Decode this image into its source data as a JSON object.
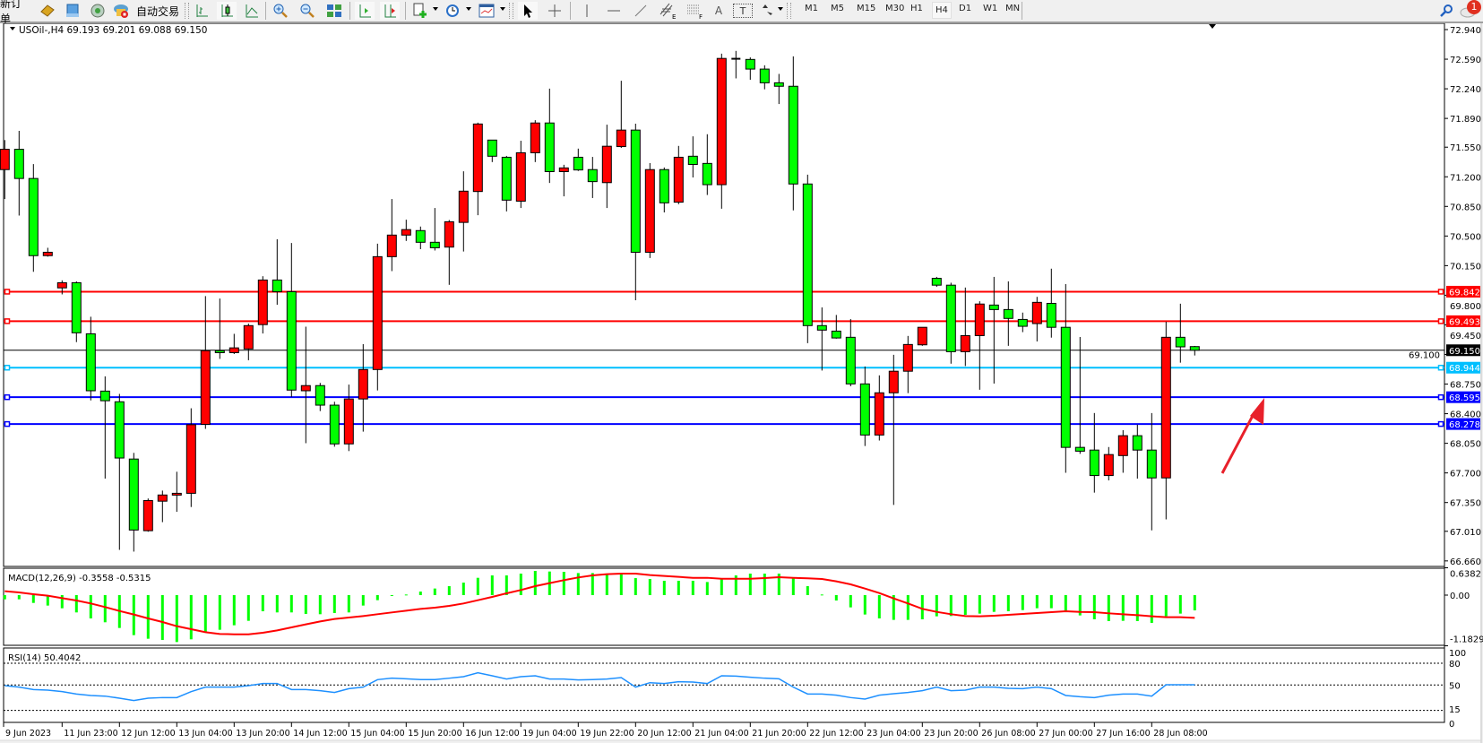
{
  "toolbar": {
    "new_order_label": "新订单",
    "auto_trading_label": "自动交易",
    "timeframes": [
      "M1",
      "M5",
      "M15",
      "M30",
      "H1",
      "H4",
      "D1",
      "W1",
      "MN"
    ],
    "selected_timeframe": "H4",
    "tools": {
      "text_label": "A",
      "text_box_label": "T",
      "equidistant_channel_sub": "E",
      "fibo_sub": "F"
    },
    "notification_count": "1"
  },
  "chart": {
    "header": "USOil-,H4  69.193 69.201 69.088 69.150",
    "colors": {
      "bull": "#ff0000",
      "bear": "#00ff00",
      "wick": "#000000"
    },
    "price_axis": [
      "72.940",
      "72.590",
      "72.240",
      "71.890",
      "71.550",
      "71.200",
      "70.850",
      "70.500",
      "70.150",
      "69.800",
      "69.450",
      "69.100",
      "68.750",
      "68.400",
      "68.050",
      "67.700",
      "67.350",
      "67.010",
      "66.660"
    ],
    "horizontal_lines": [
      {
        "price": 69.842,
        "label": "69.842",
        "color": "#ff0000"
      },
      {
        "price": 69.493,
        "label": "69.493",
        "color": "#ff0000"
      },
      {
        "price": 69.15,
        "label": "69.150",
        "color": "#000000",
        "current": true
      },
      {
        "price": 68.944,
        "label": "68.944",
        "color": "#00bfff"
      },
      {
        "price": 68.595,
        "label": "68.595",
        "color": "#0000ff"
      },
      {
        "price": 68.278,
        "label": "68.278",
        "color": "#0000ff"
      }
    ],
    "time_axis": [
      {
        "index": 0,
        "label": "9 Jun 2023"
      },
      {
        "index": 4,
        "label": "11 Jun 23:00"
      },
      {
        "index": 8,
        "label": "12 Jun 12:00"
      },
      {
        "index": 12,
        "label": "13 Jun 04:00"
      },
      {
        "index": 16,
        "label": "13 Jun 20:00"
      },
      {
        "index": 20,
        "label": "14 Jun 12:00"
      },
      {
        "index": 24,
        "label": "15 Jun 04:00"
      },
      {
        "index": 28,
        "label": "15 Jun 20:00"
      },
      {
        "index": 32,
        "label": "16 Jun 12:00"
      },
      {
        "index": 36,
        "label": "19 Jun 04:00"
      },
      {
        "index": 40,
        "label": "19 Jun 22:00"
      },
      {
        "index": 44,
        "label": "20 Jun 12:00"
      },
      {
        "index": 48,
        "label": "21 Jun 04:00"
      },
      {
        "index": 52,
        "label": "21 Jun 20:00"
      },
      {
        "index": 56,
        "label": "22 Jun 12:00"
      },
      {
        "index": 60,
        "label": "23 Jun 04:00"
      },
      {
        "index": 64,
        "label": "23 Jun 20:00"
      },
      {
        "index": 68,
        "label": "26 Jun 08:00"
      },
      {
        "index": 72,
        "label": "27 Jun 00:00"
      },
      {
        "index": 76,
        "label": "27 Jun 16:00"
      },
      {
        "index": 80,
        "label": "28 Jun 08:00"
      }
    ],
    "annotation_arrow": {
      "color": "#e8202a"
    }
  },
  "chart_data": [
    {
      "type": "candlestick",
      "title": "USOil-,H4",
      "ylim": [
        66.66,
        72.94
      ],
      "ohlc_order": [
        "open",
        "high",
        "low",
        "close"
      ],
      "candles": [
        [
          71.285,
          71.634,
          70.937,
          71.525
        ],
        [
          71.525,
          71.743,
          70.742,
          71.18
        ],
        [
          71.18,
          71.35,
          70.077,
          70.268
        ],
        [
          70.268,
          70.361,
          70.256,
          70.308
        ],
        [
          69.887,
          69.976,
          69.81,
          69.948
        ],
        [
          69.948,
          69.964,
          69.246,
          69.356
        ],
        [
          69.344,
          69.546,
          68.557,
          68.671
        ],
        [
          68.667,
          68.841,
          67.633,
          68.553
        ],
        [
          68.541,
          68.634,
          66.79,
          67.876
        ],
        [
          67.864,
          67.937,
          66.77,
          67.025
        ],
        [
          67.017,
          67.398,
          67.005,
          67.374
        ],
        [
          67.366,
          67.491,
          67.118,
          67.439
        ],
        [
          67.439,
          67.714,
          67.24,
          67.459
        ],
        [
          67.459,
          68.464,
          67.297,
          68.27
        ],
        [
          68.274,
          69.79,
          68.221,
          69.145
        ],
        [
          69.145,
          69.761,
          69.048,
          69.121
        ],
        [
          69.121,
          69.344,
          69.105,
          69.178
        ],
        [
          69.166,
          69.465,
          69.032,
          69.441
        ],
        [
          69.453,
          70.025,
          69.348,
          69.98
        ],
        [
          69.98,
          70.462,
          69.688,
          69.842
        ],
        [
          69.842,
          70.418,
          68.598,
          68.679
        ],
        [
          68.671,
          69.429,
          68.051,
          68.732
        ],
        [
          68.732,
          68.764,
          68.431,
          68.501
        ],
        [
          68.501,
          68.541,
          68.01,
          68.043
        ],
        [
          68.043,
          68.744,
          67.958,
          68.574
        ],
        [
          68.574,
          69.222,
          68.188,
          68.922
        ],
        [
          68.922,
          70.41,
          68.675,
          70.256
        ],
        [
          70.256,
          70.937,
          70.085,
          70.511
        ],
        [
          70.511,
          70.693,
          70.442,
          70.576
        ],
        [
          70.564,
          70.612,
          70.345,
          70.426
        ],
        [
          70.426,
          70.831,
          70.329,
          70.361
        ],
        [
          70.369,
          70.689,
          69.923,
          70.669
        ],
        [
          70.661,
          71.265,
          70.317,
          71.03
        ],
        [
          71.026,
          71.84,
          70.746,
          71.824
        ],
        [
          71.634,
          71.634,
          71.374,
          71.443
        ],
        [
          71.431,
          71.447,
          70.791,
          70.924
        ],
        [
          70.912,
          71.626,
          70.831,
          71.484
        ],
        [
          71.484,
          71.869,
          71.374,
          71.836
        ],
        [
          71.836,
          72.242,
          71.127,
          71.261
        ],
        [
          71.261,
          71.342,
          70.969,
          71.305
        ],
        [
          71.431,
          71.533,
          71.269,
          71.281
        ],
        [
          71.285,
          71.435,
          70.949,
          71.143
        ],
        [
          71.131,
          71.816,
          70.831,
          71.561
        ],
        [
          71.557,
          72.335,
          71.541,
          71.752
        ],
        [
          71.752,
          71.828,
          69.741,
          70.308
        ],
        [
          70.308,
          71.362,
          70.24,
          71.285
        ],
        [
          71.285,
          71.31,
          70.779,
          70.892
        ],
        [
          70.9,
          71.565,
          70.876,
          71.431
        ],
        [
          71.443,
          71.678,
          71.192,
          71.346
        ],
        [
          71.358,
          71.703,
          70.985,
          71.107
        ],
        [
          71.107,
          72.655,
          70.823,
          72.599
        ],
        [
          72.595,
          72.688,
          72.363,
          72.595
        ],
        [
          72.587,
          72.611,
          72.347,
          72.473
        ],
        [
          72.473,
          72.518,
          72.234,
          72.311
        ],
        [
          72.311,
          72.416,
          72.06,
          72.27
        ],
        [
          72.27,
          72.623,
          70.803,
          71.115
        ],
        [
          71.115,
          71.225,
          69.234,
          69.441
        ],
        [
          69.441,
          69.656,
          68.91,
          69.388
        ],
        [
          69.376,
          69.567,
          69.287,
          69.295
        ],
        [
          69.303,
          69.518,
          68.724,
          68.752
        ],
        [
          68.752,
          68.958,
          68.018,
          68.148
        ],
        [
          68.148,
          68.853,
          68.083,
          68.647
        ],
        [
          68.647,
          69.096,
          67.321,
          68.902
        ],
        [
          68.902,
          69.319,
          68.643,
          69.218
        ],
        [
          69.214,
          69.421,
          69.202,
          69.421
        ],
        [
          70.0,
          70.017,
          69.899,
          69.919
        ],
        [
          69.919,
          69.948,
          68.991,
          69.133
        ],
        [
          69.133,
          69.891,
          68.963,
          69.323
        ],
        [
          69.323,
          69.729,
          68.683,
          69.696
        ],
        [
          69.684,
          70.017,
          68.756,
          69.631
        ],
        [
          69.631,
          69.964,
          69.202,
          69.526
        ],
        [
          69.514,
          69.595,
          69.364,
          69.433
        ],
        [
          69.465,
          69.781,
          69.254,
          69.716
        ],
        [
          69.704,
          70.114,
          69.299,
          69.421
        ],
        [
          69.421,
          69.932,
          67.702,
          68.002
        ],
        [
          68.002,
          69.307,
          67.925,
          67.957
        ],
        [
          67.97,
          68.408,
          67.467,
          67.669
        ],
        [
          67.669,
          68.006,
          67.612,
          67.917
        ],
        [
          67.905,
          68.205,
          67.702,
          68.14
        ],
        [
          68.14,
          68.27,
          67.633,
          67.97
        ],
        [
          67.97,
          68.408,
          67.021,
          67.641
        ],
        [
          67.641,
          69.486,
          67.151,
          69.303
        ],
        [
          69.303,
          69.7,
          69.003,
          69.19
        ],
        [
          69.193,
          69.201,
          69.088,
          69.15
        ]
      ]
    },
    {
      "type": "bar+line",
      "title": "MACD(12,26,9) -0.3558 -0.5315",
      "ylim": [
        -1.1829,
        0.6382
      ],
      "axis_labels": [
        "0.6382",
        "0.00",
        "-1.1829"
      ],
      "histogram_color": "#00ff00",
      "signal_color": "#ff0000",
      "macd": [
        -0.098,
        -0.098,
        -0.182,
        -0.244,
        -0.307,
        -0.404,
        -0.544,
        -0.634,
        -0.767,
        -0.934,
        -1.018,
        -1.046,
        -1.095,
        -1.032,
        -0.878,
        -0.809,
        -0.704,
        -0.6,
        -0.377,
        -0.404,
        -0.404,
        -0.439,
        -0.446,
        -0.418,
        -0.404,
        -0.244,
        -0.118,
        -0.008,
        0.014,
        0.083,
        0.154,
        0.209,
        0.292,
        0.404,
        0.46,
        0.46,
        0.502,
        0.565,
        0.551,
        0.544,
        0.515,
        0.515,
        0.502,
        0.488,
        0.397,
        0.377,
        0.335,
        0.335,
        0.335,
        0.306,
        0.377,
        0.46,
        0.502,
        0.502,
        0.502,
        0.404,
        0.209,
        0.014,
        -0.126,
        -0.286,
        -0.453,
        -0.544,
        -0.578,
        -0.578,
        -0.565,
        -0.495,
        -0.488,
        -0.46,
        -0.432,
        -0.391,
        -0.377,
        -0.349,
        -0.306,
        -0.306,
        -0.369,
        -0.474,
        -0.565,
        -0.606,
        -0.6,
        -0.606,
        -0.648,
        -0.495,
        -0.432,
        -0.356
      ],
      "signal": [
        0.091,
        0.063,
        0.021,
        -0.014,
        -0.07,
        -0.126,
        -0.195,
        -0.279,
        -0.37,
        -0.453,
        -0.544,
        -0.628,
        -0.725,
        -0.795,
        -0.865,
        -0.907,
        -0.914,
        -0.914,
        -0.879,
        -0.823,
        -0.753,
        -0.683,
        -0.614,
        -0.558,
        -0.523,
        -0.488,
        -0.446,
        -0.404,
        -0.363,
        -0.321,
        -0.293,
        -0.251,
        -0.195,
        -0.119,
        -0.042,
        0.042,
        0.119,
        0.209,
        0.279,
        0.349,
        0.412,
        0.46,
        0.488,
        0.502,
        0.502,
        0.467,
        0.446,
        0.425,
        0.404,
        0.404,
        0.383,
        0.383,
        0.383,
        0.397,
        0.418,
        0.404,
        0.391,
        0.377,
        0.321,
        0.251,
        0.153,
        0.049,
        -0.077,
        -0.195,
        -0.321,
        -0.391,
        -0.446,
        -0.488,
        -0.495,
        -0.481,
        -0.46,
        -0.439,
        -0.418,
        -0.397,
        -0.377,
        -0.391,
        -0.397,
        -0.425,
        -0.446,
        -0.467,
        -0.495,
        -0.516,
        -0.516,
        -0.5315
      ]
    },
    {
      "type": "line",
      "title": "RSI(14) 50.4042",
      "ylim": [
        0,
        100
      ],
      "axis_labels": [
        "100",
        "80",
        "50",
        "15",
        "0"
      ],
      "levels": [
        80,
        50,
        15
      ],
      "color": "#1e90ff",
      "values": [
        49.1,
        47.1,
        43.8,
        43.0,
        40.9,
        37.6,
        35.6,
        34.7,
        31.9,
        28.6,
        31.9,
        32.7,
        32.7,
        40.9,
        47.1,
        47.1,
        47.1,
        49.1,
        52.0,
        52.0,
        43.8,
        43.8,
        42.2,
        39.7,
        45.0,
        47.1,
        57.4,
        59.4,
        58.6,
        57.4,
        57.4,
        59.4,
        61.5,
        66.8,
        62.7,
        58.2,
        61.5,
        62.7,
        58.2,
        58.2,
        57.0,
        57.4,
        58.2,
        60.2,
        47.1,
        53.2,
        52.0,
        54.5,
        54.1,
        52.0,
        62.7,
        62.3,
        60.7,
        59.4,
        58.6,
        47.1,
        37.6,
        37.6,
        36.0,
        32.7,
        30.6,
        36.0,
        38.0,
        39.7,
        42.2,
        47.1,
        42.2,
        43.0,
        47.1,
        47.1,
        45.4,
        45.0,
        47.1,
        45.0,
        35.6,
        33.9,
        32.7,
        36.0,
        37.6,
        37.6,
        34.7,
        50.4,
        50.4,
        50.4
      ]
    }
  ]
}
